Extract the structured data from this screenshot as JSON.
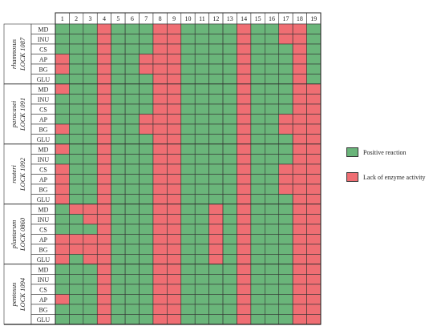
{
  "chart_data": {
    "type": "heatmap",
    "columns": [
      "1",
      "2",
      "3",
      "4",
      "5",
      "6",
      "7",
      "8",
      "9",
      "10",
      "11",
      "12",
      "13",
      "14",
      "15",
      "16",
      "17",
      "18",
      "19"
    ],
    "groups": [
      {
        "line1": "rhamnosus",
        "line2": "LOCK 1087",
        "rows": [
          {
            "label": "MD",
            "values": [
              1,
              1,
              1,
              0,
              1,
              1,
              1,
              0,
              0,
              1,
              1,
              1,
              1,
              0,
              1,
              1,
              0,
              0,
              1
            ]
          },
          {
            "label": "INU",
            "values": [
              1,
              1,
              1,
              0,
              1,
              1,
              1,
              0,
              0,
              1,
              1,
              1,
              1,
              0,
              1,
              1,
              0,
              0,
              1
            ]
          },
          {
            "label": "CS",
            "values": [
              1,
              1,
              1,
              0,
              1,
              1,
              1,
              0,
              0,
              1,
              1,
              1,
              1,
              0,
              1,
              1,
              1,
              0,
              1
            ]
          },
          {
            "label": "AP",
            "values": [
              0,
              1,
              1,
              0,
              1,
              1,
              0,
              0,
              0,
              1,
              1,
              1,
              1,
              0,
              1,
              1,
              1,
              0,
              1
            ]
          },
          {
            "label": "BG",
            "values": [
              0,
              1,
              1,
              0,
              1,
              1,
              0,
              0,
              0,
              1,
              1,
              1,
              1,
              0,
              1,
              1,
              1,
              0,
              1
            ]
          },
          {
            "label": "GLU",
            "values": [
              1,
              1,
              1,
              0,
              1,
              1,
              1,
              0,
              0,
              1,
              1,
              1,
              1,
              0,
              1,
              1,
              1,
              0,
              1
            ]
          }
        ]
      },
      {
        "line1": "paracasei",
        "line2": "LOCK 1091",
        "rows": [
          {
            "label": "MD",
            "values": [
              0,
              1,
              1,
              0,
              1,
              1,
              1,
              0,
              0,
              1,
              1,
              1,
              1,
              0,
              1,
              1,
              1,
              0,
              0
            ]
          },
          {
            "label": "INU",
            "values": [
              1,
              1,
              1,
              0,
              1,
              1,
              1,
              0,
              0,
              1,
              1,
              1,
              1,
              0,
              1,
              1,
              1,
              0,
              0
            ]
          },
          {
            "label": "CS",
            "values": [
              1,
              1,
              1,
              0,
              1,
              1,
              1,
              0,
              0,
              1,
              1,
              1,
              1,
              0,
              1,
              1,
              1,
              0,
              0
            ]
          },
          {
            "label": "AP",
            "values": [
              1,
              1,
              1,
              0,
              1,
              1,
              0,
              0,
              0,
              1,
              1,
              1,
              1,
              0,
              1,
              1,
              0,
              0,
              0
            ]
          },
          {
            "label": "BG",
            "values": [
              0,
              1,
              1,
              0,
              1,
              1,
              0,
              0,
              0,
              1,
              1,
              1,
              1,
              0,
              1,
              1,
              0,
              0,
              0
            ]
          },
          {
            "label": "GLU",
            "values": [
              1,
              1,
              1,
              0,
              1,
              1,
              1,
              0,
              0,
              1,
              1,
              1,
              1,
              0,
              1,
              1,
              1,
              0,
              0
            ]
          }
        ]
      },
      {
        "line1": "reuteri",
        "line2": "LOCK 1092",
        "rows": [
          {
            "label": "MD",
            "values": [
              0,
              1,
              1,
              0,
              1,
              1,
              1,
              0,
              0,
              1,
              1,
              1,
              1,
              0,
              1,
              1,
              1,
              0,
              0
            ]
          },
          {
            "label": "INU",
            "values": [
              1,
              1,
              1,
              0,
              1,
              1,
              1,
              0,
              0,
              1,
              1,
              1,
              1,
              0,
              1,
              1,
              1,
              0,
              0
            ]
          },
          {
            "label": "CS",
            "values": [
              0,
              1,
              1,
              0,
              1,
              1,
              1,
              0,
              0,
              1,
              1,
              1,
              1,
              0,
              1,
              1,
              0,
              0,
              0
            ]
          },
          {
            "label": "AP",
            "values": [
              0,
              1,
              1,
              0,
              1,
              1,
              1,
              0,
              0,
              1,
              1,
              1,
              1,
              0,
              1,
              1,
              0,
              0,
              0
            ]
          },
          {
            "label": "BG",
            "values": [
              0,
              1,
              1,
              0,
              1,
              1,
              1,
              0,
              0,
              1,
              1,
              1,
              1,
              0,
              1,
              1,
              0,
              0,
              0
            ]
          },
          {
            "label": "GLU",
            "values": [
              0,
              1,
              1,
              0,
              1,
              1,
              1,
              0,
              0,
              1,
              1,
              1,
              1,
              0,
              1,
              1,
              1,
              0,
              0
            ]
          }
        ]
      },
      {
        "line1": "plantarum",
        "line2": "LOCK 0860",
        "rows": [
          {
            "label": "MD",
            "values": [
              1,
              0,
              0,
              0,
              1,
              1,
              1,
              0,
              0,
              1,
              1,
              0,
              1,
              0,
              1,
              1,
              1,
              0,
              0
            ]
          },
          {
            "label": "INU",
            "values": [
              1,
              1,
              0,
              0,
              1,
              1,
              1,
              0,
              0,
              1,
              1,
              0,
              1,
              0,
              1,
              1,
              1,
              0,
              0
            ]
          },
          {
            "label": "CS",
            "values": [
              1,
              1,
              1,
              0,
              1,
              1,
              1,
              0,
              0,
              1,
              1,
              0,
              1,
              0,
              1,
              1,
              1,
              0,
              0
            ]
          },
          {
            "label": "AP",
            "values": [
              0,
              0,
              0,
              0,
              1,
              1,
              1,
              0,
              0,
              1,
              1,
              0,
              1,
              0,
              1,
              1,
              1,
              0,
              0
            ]
          },
          {
            "label": "BG",
            "values": [
              0,
              0,
              0,
              0,
              1,
              1,
              1,
              0,
              0,
              1,
              1,
              0,
              1,
              0,
              1,
              1,
              1,
              0,
              0
            ]
          },
          {
            "label": "GLU",
            "values": [
              0,
              1,
              0,
              0,
              1,
              1,
              1,
              0,
              0,
              1,
              1,
              0,
              1,
              0,
              1,
              1,
              1,
              0,
              0
            ]
          }
        ]
      },
      {
        "line1": "pentosus",
        "line2": "LOCK 1094",
        "rows": [
          {
            "label": "MD",
            "values": [
              1,
              1,
              1,
              0,
              1,
              1,
              1,
              0,
              0,
              1,
              1,
              1,
              1,
              0,
              1,
              1,
              1,
              0,
              0
            ]
          },
          {
            "label": "INU",
            "values": [
              1,
              1,
              1,
              0,
              1,
              1,
              1,
              0,
              0,
              1,
              1,
              1,
              1,
              0,
              1,
              1,
              1,
              0,
              0
            ]
          },
          {
            "label": "CS",
            "values": [
              1,
              1,
              1,
              0,
              1,
              1,
              1,
              0,
              0,
              1,
              1,
              1,
              1,
              0,
              1,
              1,
              1,
              0,
              0
            ]
          },
          {
            "label": "AP",
            "values": [
              0,
              1,
              1,
              0,
              1,
              1,
              1,
              0,
              0,
              1,
              1,
              1,
              1,
              0,
              1,
              1,
              1,
              0,
              0
            ]
          },
          {
            "label": "BG",
            "values": [
              1,
              1,
              1,
              0,
              1,
              1,
              1,
              0,
              0,
              1,
              1,
              1,
              1,
              0,
              1,
              1,
              1,
              0,
              0
            ]
          },
          {
            "label": "GLU",
            "values": [
              1,
              1,
              1,
              0,
              1,
              1,
              1,
              0,
              0,
              1,
              1,
              1,
              1,
              0,
              1,
              1,
              1,
              0,
              0
            ]
          }
        ]
      }
    ],
    "legend": [
      {
        "label": "Positive reaction",
        "value": 1,
        "color": "#6ab57a"
      },
      {
        "label": "Lack of enzyme activity",
        "value": 0,
        "color": "#ef6e73"
      }
    ],
    "legend_placement": "right"
  }
}
